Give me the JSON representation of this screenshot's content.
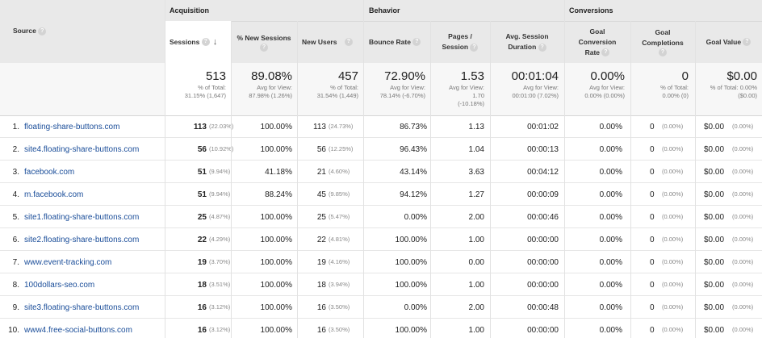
{
  "header": {
    "source": "Source",
    "groups": {
      "acquisition": "Acquisition",
      "behavior": "Behavior",
      "conversions": "Conversions"
    },
    "cols": {
      "sessions": "Sessions",
      "new_sessions": "% New Sessions",
      "new_users": "New Users",
      "bounce_rate": "Bounce Rate",
      "pages_session_1": "Pages /",
      "pages_session_2": "Session",
      "avg_session_1": "Avg. Session",
      "avg_session_2": "Duration",
      "goal_conv_1": "Goal",
      "goal_conv_2": "Conversion",
      "goal_conv_3": "Rate",
      "goal_comp_1": "Goal",
      "goal_comp_2": "Completions",
      "goal_value": "Goal Value"
    },
    "help_glyph": "?",
    "sort_arrow": "↓"
  },
  "totals": {
    "sessions": {
      "value": "513",
      "l1": "% of Total:",
      "l2": "31.15% (1,647)"
    },
    "new_sessions": {
      "value": "89.08%",
      "l1": "Avg for View:",
      "l2": "87.98% (1.26%)"
    },
    "new_users": {
      "value": "457",
      "l1": "% of Total:",
      "l2": "31.54% (1,449)"
    },
    "bounce_rate": {
      "value": "72.90%",
      "l1": "Avg for View:",
      "l2": "78.14% (-6.70%)"
    },
    "pages_session": {
      "value": "1.53",
      "l1": "Avg for View:",
      "l2": "1.70",
      "l3": "(-10.18%)"
    },
    "avg_duration": {
      "value": "00:01:04",
      "l1": "Avg for View:",
      "l2": "00:01:00 (7.02%)"
    },
    "goal_conv": {
      "value": "0.00%",
      "l1": "Avg for View:",
      "l2": "0.00% (0.00%)"
    },
    "goal_comp": {
      "value": "0",
      "l1": "% of Total:",
      "l2": "0.00% (0)"
    },
    "goal_value": {
      "value": "$0.00",
      "l1": "% of Total: 0.00%",
      "l2": "($0.00)"
    }
  },
  "rows": [
    {
      "n": "1.",
      "source": "floating-share-buttons.com",
      "sessions": "113",
      "sess_pct": "(22.03%)",
      "new_sess": "100.00%",
      "new_users": "113",
      "nu_pct": "(24.73%)",
      "bounce": "86.73%",
      "pages": "1.13",
      "duration": "00:01:02",
      "conv": "0.00%",
      "comp": "0",
      "comp_pct": "(0.00%)",
      "value": "$0.00",
      "value_pct": "(0.00%)"
    },
    {
      "n": "2.",
      "source": "site4.floating-share-buttons.com",
      "sessions": "56",
      "sess_pct": "(10.92%)",
      "new_sess": "100.00%",
      "new_users": "56",
      "nu_pct": "(12.25%)",
      "bounce": "96.43%",
      "pages": "1.04",
      "duration": "00:00:13",
      "conv": "0.00%",
      "comp": "0",
      "comp_pct": "(0.00%)",
      "value": "$0.00",
      "value_pct": "(0.00%)"
    },
    {
      "n": "3.",
      "source": "facebook.com",
      "sessions": "51",
      "sess_pct": "(9.94%)",
      "new_sess": "41.18%",
      "new_users": "21",
      "nu_pct": "(4.60%)",
      "bounce": "43.14%",
      "pages": "3.63",
      "duration": "00:04:12",
      "conv": "0.00%",
      "comp": "0",
      "comp_pct": "(0.00%)",
      "value": "$0.00",
      "value_pct": "(0.00%)"
    },
    {
      "n": "4.",
      "source": "m.facebook.com",
      "sessions": "51",
      "sess_pct": "(9.94%)",
      "new_sess": "88.24%",
      "new_users": "45",
      "nu_pct": "(9.85%)",
      "bounce": "94.12%",
      "pages": "1.27",
      "duration": "00:00:09",
      "conv": "0.00%",
      "comp": "0",
      "comp_pct": "(0.00%)",
      "value": "$0.00",
      "value_pct": "(0.00%)"
    },
    {
      "n": "5.",
      "source": "site1.floating-share-buttons.com",
      "sessions": "25",
      "sess_pct": "(4.87%)",
      "new_sess": "100.00%",
      "new_users": "25",
      "nu_pct": "(5.47%)",
      "bounce": "0.00%",
      "pages": "2.00",
      "duration": "00:00:46",
      "conv": "0.00%",
      "comp": "0",
      "comp_pct": "(0.00%)",
      "value": "$0.00",
      "value_pct": "(0.00%)"
    },
    {
      "n": "6.",
      "source": "site2.floating-share-buttons.com",
      "sessions": "22",
      "sess_pct": "(4.29%)",
      "new_sess": "100.00%",
      "new_users": "22",
      "nu_pct": "(4.81%)",
      "bounce": "100.00%",
      "pages": "1.00",
      "duration": "00:00:00",
      "conv": "0.00%",
      "comp": "0",
      "comp_pct": "(0.00%)",
      "value": "$0.00",
      "value_pct": "(0.00%)"
    },
    {
      "n": "7.",
      "source": "www.event-tracking.com",
      "sessions": "19",
      "sess_pct": "(3.70%)",
      "new_sess": "100.00%",
      "new_users": "19",
      "nu_pct": "(4.16%)",
      "bounce": "100.00%",
      "pages": "0.00",
      "duration": "00:00:00",
      "conv": "0.00%",
      "comp": "0",
      "comp_pct": "(0.00%)",
      "value": "$0.00",
      "value_pct": "(0.00%)"
    },
    {
      "n": "8.",
      "source": "100dollars-seo.com",
      "sessions": "18",
      "sess_pct": "(3.51%)",
      "new_sess": "100.00%",
      "new_users": "18",
      "nu_pct": "(3.94%)",
      "bounce": "100.00%",
      "pages": "1.00",
      "duration": "00:00:00",
      "conv": "0.00%",
      "comp": "0",
      "comp_pct": "(0.00%)",
      "value": "$0.00",
      "value_pct": "(0.00%)"
    },
    {
      "n": "9.",
      "source": "site3.floating-share-buttons.com",
      "sessions": "16",
      "sess_pct": "(3.12%)",
      "new_sess": "100.00%",
      "new_users": "16",
      "nu_pct": "(3.50%)",
      "bounce": "0.00%",
      "pages": "2.00",
      "duration": "00:00:48",
      "conv": "0.00%",
      "comp": "0",
      "comp_pct": "(0.00%)",
      "value": "$0.00",
      "value_pct": "(0.00%)"
    },
    {
      "n": "10.",
      "source": "www4.free-social-buttons.com",
      "sessions": "16",
      "sess_pct": "(3.12%)",
      "new_sess": "100.00%",
      "new_users": "16",
      "nu_pct": "(3.50%)",
      "bounce": "100.00%",
      "pages": "1.00",
      "duration": "00:00:00",
      "conv": "0.00%",
      "comp": "0",
      "comp_pct": "(0.00%)",
      "value": "$0.00",
      "value_pct": "(0.00%)"
    }
  ]
}
